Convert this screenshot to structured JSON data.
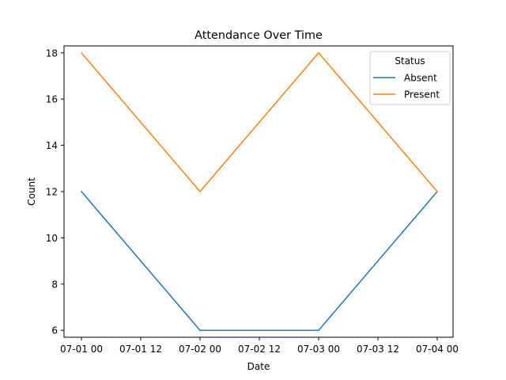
{
  "chart_data": {
    "type": "line",
    "title": "Attendance Over Time",
    "xlabel": "Date",
    "ylabel": "Count",
    "x": [
      "2021-07-01 00:00",
      "2021-07-02 00:00",
      "2021-07-03 00:00",
      "2021-07-04 00:00"
    ],
    "x_tick_labels": [
      "07-01 00",
      "07-01 12",
      "07-02 00",
      "07-02 12",
      "07-03 00",
      "07-03 12",
      "07-04 00"
    ],
    "ylim": [
      5.7,
      18.3
    ],
    "y_ticks": [
      6,
      8,
      10,
      12,
      14,
      16,
      18
    ],
    "grid": false,
    "legend": {
      "title": "Status",
      "placement": "top-right"
    },
    "series": [
      {
        "name": "Absent",
        "color": "#1f77b4",
        "values": [
          12,
          6,
          6,
          12
        ]
      },
      {
        "name": "Present",
        "color": "#ff7f0e",
        "values": [
          18,
          12,
          18,
          12
        ]
      }
    ]
  }
}
